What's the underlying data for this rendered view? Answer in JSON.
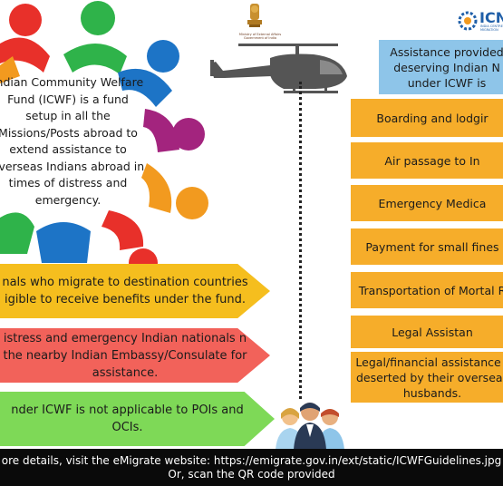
{
  "circle_text": "Indian Community Welfare Fund (ICWF) is a fund setup in all the Missions/Posts abroad to extend assistance to overseas Indians abroad in times of distress and emergency.",
  "emblem_caption": "Ministry of External Affairs Government of India",
  "logo_text": "ICN",
  "logo_subtext": "INDIA CENTRE FOR MIGRATION",
  "arrows": [
    {
      "text": "nals who migrate to destination countries igible to receive benefits under the fund."
    },
    {
      "text": "istress and emergency Indian nationals n the nearby Indian Embassy/Consulate for assistance."
    },
    {
      "text": "nder ICWF is not applicable to POIs and OCIs."
    }
  ],
  "assist_header": "Assistance provided deserving Indian N under ICWF is",
  "services": [
    "Boarding and lodgir",
    "Air passage to In",
    "Emergency Medica",
    "Payment for small fines",
    "Transportation of Mortal R",
    "Legal Assistan",
    "Legal/financial assistance t deserted by their overseas husbands."
  ],
  "footer": {
    "line1": "ore details, visit the eMigrate website: https://emigrate.gov.in/ext/static/ICWFGuidelines.jpg",
    "line2": "Or, scan the QR code provided"
  },
  "colors": {
    "yellow": "#f5be1e",
    "red": "#f2625a",
    "green": "#7ed957",
    "orange_box": "#f6ad2a",
    "blue_box": "#8ec5e9"
  }
}
